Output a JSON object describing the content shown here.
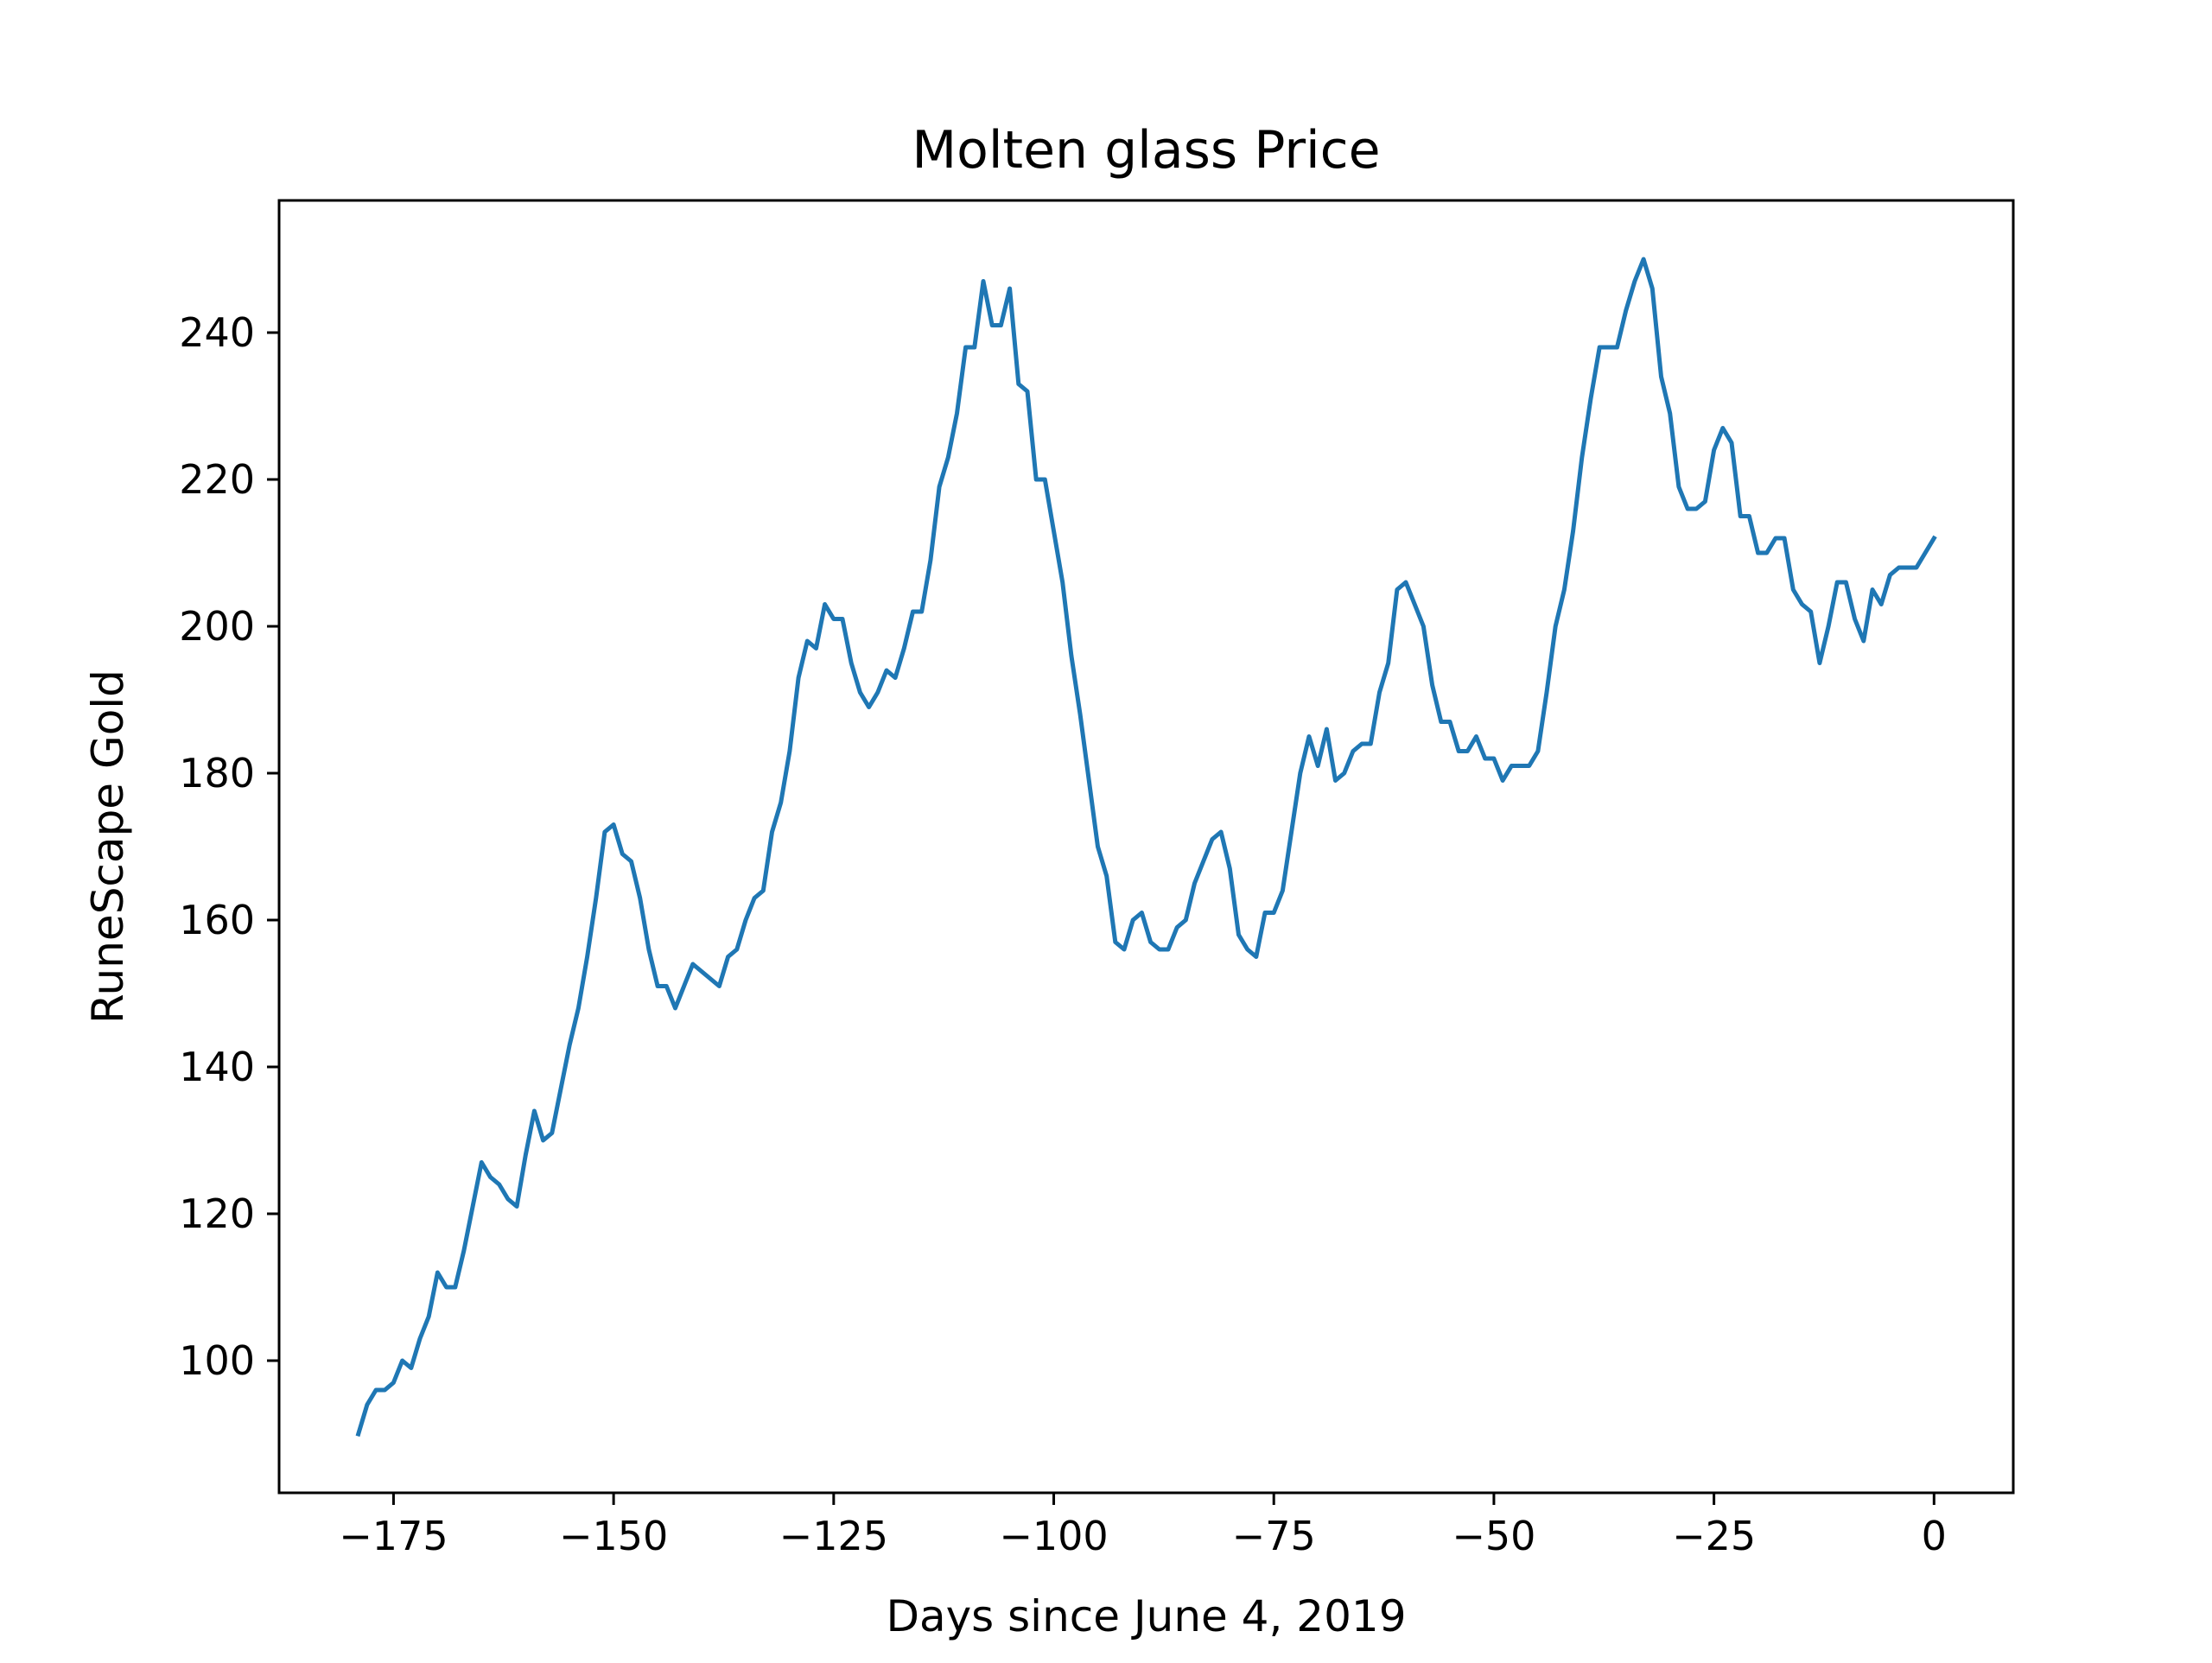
{
  "chart_data": {
    "type": "line",
    "title": "Molten glass Price",
    "xlabel": "Days since June 4, 2019",
    "ylabel": "RuneScape Gold",
    "xlim": [
      -188,
      9
    ],
    "ylim": [
      82,
      258
    ],
    "xticks": [
      -175,
      -150,
      -125,
      -100,
      -75,
      -50,
      -25,
      0
    ],
    "yticks": [
      100,
      120,
      140,
      160,
      180,
      200,
      220,
      240
    ],
    "xtick_labels": [
      "−175",
      "−150",
      "−125",
      "−100",
      "−75",
      "−50",
      "−25",
      "0"
    ],
    "ytick_labels": [
      "100",
      "120",
      "140",
      "160",
      "180",
      "200",
      "220",
      "240"
    ],
    "grid": false,
    "series": [
      {
        "color": "#1f77b4",
        "x": [
          -179,
          -178,
          -177,
          -176,
          -175,
          -174,
          -173,
          -172,
          -171,
          -170,
          -169,
          -168,
          -167,
          -166,
          -165,
          -164,
          -163,
          -162,
          -161,
          -160,
          -159,
          -158,
          -157,
          -156,
          -155,
          -154,
          -153,
          -152,
          -151,
          -150,
          -149,
          -148,
          -147,
          -146,
          -145,
          -144,
          -143,
          -142,
          -141,
          -140,
          -139,
          -138,
          -137,
          -136,
          -135,
          -134,
          -133,
          -132,
          -131,
          -130,
          -129,
          -128,
          -127,
          -126,
          -125,
          -124,
          -123,
          -122,
          -121,
          -120,
          -119,
          -118,
          -117,
          -116,
          -115,
          -114,
          -113,
          -112,
          -111,
          -110,
          -109,
          -108,
          -107,
          -106,
          -105,
          -104,
          -103,
          -102,
          -101,
          -100,
          -99,
          -98,
          -97,
          -96,
          -95,
          -94,
          -93,
          -92,
          -91,
          -90,
          -89,
          -88,
          -87,
          -86,
          -85,
          -84,
          -83,
          -82,
          -81,
          -80,
          -79,
          -78,
          -77,
          -76,
          -75,
          -74,
          -73,
          -72,
          -71,
          -70,
          -69,
          -68,
          -67,
          -66,
          -65,
          -64,
          -63,
          -62,
          -61,
          -60,
          -59,
          -58,
          -57,
          -56,
          -55,
          -54,
          -53,
          -52,
          -51,
          -50,
          -49,
          -48,
          -47,
          -46,
          -45,
          -44,
          -43,
          -42,
          -41,
          -40,
          -39,
          -38,
          -37,
          -36,
          -35,
          -34,
          -33,
          -32,
          -31,
          -30,
          -29,
          -28,
          -27,
          -26,
          -25,
          -24,
          -23,
          -22,
          -21,
          -20,
          -19,
          -18,
          -17,
          -16,
          -15,
          -14,
          -13,
          -12,
          -11,
          -10,
          -9,
          -8,
          -7,
          -6,
          -5,
          -4,
          -3,
          -2,
          -1,
          0
        ],
        "y": [
          90,
          94,
          96,
          96,
          97,
          100,
          99,
          103,
          106,
          112,
          110,
          110,
          115,
          121,
          127,
          125,
          124,
          122,
          121,
          128,
          134,
          130,
          131,
          137,
          143,
          148,
          155,
          163,
          172,
          173,
          169,
          168,
          163,
          156,
          151,
          151,
          148,
          151,
          154,
          153,
          152,
          151,
          155,
          156,
          160,
          163,
          164,
          172,
          176,
          183,
          193,
          198,
          197,
          203,
          201,
          201,
          195,
          191,
          189,
          191,
          194,
          193,
          197,
          202,
          202,
          209,
          219,
          223,
          229,
          238,
          238,
          247,
          241,
          241,
          246,
          233,
          232,
          220,
          220,
          213,
          206,
          196,
          188,
          179,
          170,
          166,
          157,
          156,
          160,
          161,
          157,
          156,
          156,
          159,
          160,
          165,
          168,
          171,
          172,
          167,
          158,
          156,
          155,
          161,
          161,
          164,
          172,
          180,
          185,
          181,
          186,
          179,
          180,
          183,
          184,
          184,
          191,
          195,
          205,
          206,
          203,
          200,
          192,
          187,
          187,
          183,
          183,
          185,
          182,
          182,
          179,
          181,
          181,
          181,
          183,
          191,
          200,
          205,
          213,
          223,
          231,
          238,
          238,
          238,
          243,
          247,
          250,
          246,
          234,
          229,
          219,
          216,
          216,
          217,
          224,
          227,
          225,
          215,
          215,
          210,
          210,
          212,
          212,
          205,
          203,
          202,
          195,
          200,
          206,
          206,
          201,
          198,
          205,
          203,
          207,
          208,
          208,
          208,
          210,
          212
        ]
      }
    ]
  }
}
